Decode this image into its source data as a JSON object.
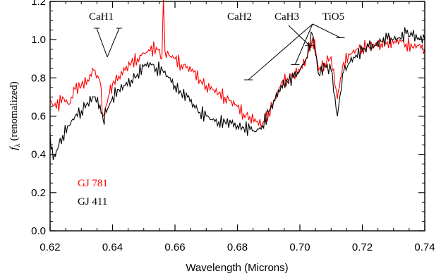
{
  "chart_data": {
    "type": "line",
    "xlabel": "Wavelength (Microns)",
    "ylabel": "(renomalized)",
    "ylabel_symbol": "f",
    "ylabel_subscript": "λ",
    "xlim": [
      0.62,
      0.74
    ],
    "ylim": [
      0.0,
      1.2
    ],
    "x_ticks": [
      "0.62",
      "0.64",
      "0.66",
      "0.68",
      "0.70",
      "0.72",
      "0.74"
    ],
    "y_ticks": [
      "0.0",
      "0.2",
      "0.4",
      "0.6",
      "0.8",
      "1.0",
      "1.2"
    ],
    "grid": false,
    "legend_placement": "bottom-left",
    "series": [
      {
        "name": "GJ 781",
        "color": "#ff0000",
        "x": [
          0.62,
          0.622,
          0.624,
          0.626,
          0.628,
          0.63,
          0.632,
          0.634,
          0.636,
          0.637,
          0.638,
          0.639,
          0.64,
          0.642,
          0.644,
          0.646,
          0.648,
          0.65,
          0.652,
          0.654,
          0.655,
          0.6558,
          0.6563,
          0.6568,
          0.658,
          0.66,
          0.662,
          0.664,
          0.666,
          0.668,
          0.67,
          0.672,
          0.674,
          0.676,
          0.678,
          0.68,
          0.682,
          0.684,
          0.686,
          0.688,
          0.69,
          0.692,
          0.694,
          0.696,
          0.698,
          0.7,
          0.702,
          0.704,
          0.705,
          0.706,
          0.708,
          0.71,
          0.712,
          0.713,
          0.714,
          0.716,
          0.718,
          0.72,
          0.722,
          0.724,
          0.726,
          0.728,
          0.73,
          0.732,
          0.734,
          0.736,
          0.738,
          0.74
        ],
        "y": [
          0.68,
          0.64,
          0.7,
          0.66,
          0.74,
          0.76,
          0.79,
          0.84,
          0.78,
          0.6,
          0.66,
          0.72,
          0.77,
          0.81,
          0.84,
          0.88,
          0.9,
          0.93,
          0.94,
          0.96,
          0.95,
          0.9,
          1.22,
          0.94,
          0.92,
          0.9,
          0.87,
          0.86,
          0.83,
          0.79,
          0.76,
          0.74,
          0.72,
          0.7,
          0.68,
          0.65,
          0.61,
          0.6,
          0.57,
          0.56,
          0.62,
          0.69,
          0.77,
          0.8,
          0.82,
          0.84,
          0.9,
          1.01,
          0.95,
          0.84,
          0.88,
          0.91,
          0.69,
          0.8,
          0.88,
          0.92,
          0.95,
          0.96,
          0.97,
          0.97,
          0.98,
          0.99,
          0.98,
          1.0,
          0.98,
          0.96,
          0.97,
          0.95
        ]
      },
      {
        "name": "GJ 411",
        "color": "#000000",
        "x": [
          0.62,
          0.621,
          0.622,
          0.624,
          0.626,
          0.628,
          0.63,
          0.632,
          0.634,
          0.636,
          0.637,
          0.638,
          0.639,
          0.64,
          0.642,
          0.644,
          0.646,
          0.648,
          0.65,
          0.652,
          0.654,
          0.656,
          0.658,
          0.66,
          0.662,
          0.664,
          0.666,
          0.668,
          0.67,
          0.672,
          0.674,
          0.676,
          0.678,
          0.68,
          0.682,
          0.684,
          0.686,
          0.688,
          0.69,
          0.692,
          0.694,
          0.696,
          0.698,
          0.7,
          0.702,
          0.704,
          0.705,
          0.706,
          0.708,
          0.71,
          0.712,
          0.713,
          0.714,
          0.716,
          0.718,
          0.72,
          0.722,
          0.724,
          0.726,
          0.728,
          0.73,
          0.732,
          0.734,
          0.736,
          0.738,
          0.74
        ],
        "y": [
          0.5,
          0.37,
          0.42,
          0.5,
          0.55,
          0.6,
          0.63,
          0.67,
          0.7,
          0.66,
          0.58,
          0.62,
          0.66,
          0.7,
          0.74,
          0.76,
          0.79,
          0.82,
          0.86,
          0.88,
          0.85,
          0.84,
          0.8,
          0.76,
          0.72,
          0.7,
          0.66,
          0.62,
          0.6,
          0.58,
          0.57,
          0.57,
          0.56,
          0.55,
          0.54,
          0.53,
          0.52,
          0.55,
          0.62,
          0.68,
          0.76,
          0.78,
          0.8,
          0.84,
          0.9,
          1.03,
          0.92,
          0.82,
          0.86,
          0.84,
          0.6,
          0.72,
          0.83,
          0.88,
          0.92,
          0.94,
          0.96,
          0.97,
          0.99,
          1.0,
          1.0,
          1.01,
          1.03,
          1.02,
          1.01,
          1.0
        ]
      }
    ],
    "annotations": [
      {
        "label": "CaH1",
        "targets": [
          {
            "x": 0.6383,
            "y": 0.92
          }
        ]
      },
      {
        "label": "CaH2",
        "targets": []
      },
      {
        "label": "CaH3",
        "targets": [
          {
            "x": 0.703,
            "y": 0.97
          }
        ]
      },
      {
        "label": "TiO5",
        "targets": [
          {
            "x": 0.6835,
            "y": 0.79
          },
          {
            "x": 0.6985,
            "y": 0.87
          },
          {
            "x": 0.713,
            "y": 1.01
          }
        ]
      }
    ]
  }
}
